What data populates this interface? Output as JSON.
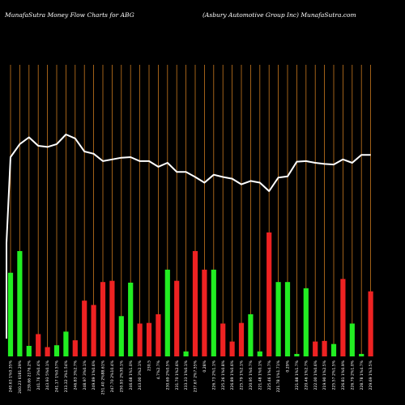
{
  "header": {
    "left": "MunafaSutra  Money Flow  Charts for ABG",
    "right": "(Asbury Automotive   Group Inc) MunafaSutra.com"
  },
  "colors": {
    "background": "#000000",
    "gridline": "#c8781e",
    "up": "#22ee22",
    "down": "#ee2222",
    "line": "#ffffff"
  },
  "chart_data": {
    "type": "bar",
    "title": "MunafaSutra  Money Flow  Charts for ABG",
    "subtitle": "(Asbury Automotive   Group Inc) MunafaSutra.com",
    "categories": [
      "240.63 1%0.35%",
      "240.23 6181.29%",
      "239.66 2176.2%",
      "241.76 3%0.4%",
      "243.93 5%0.1%",
      "241.17 1%0.57%",
      "233.32 3%1.54%",
      "246.83 3%2.7%",
      "248.97 3%0.1%",
      "249.89 1%0.6%",
      "251.40 2%88.61%",
      "247.70 2%10.4%",
      "250.93 2%30.1%",
      "246.68 1%1.0%",
      "243.00 3%2.1%",
      "230.5",
      "4.7%2.7%",
      "230.69 2%0.5%",
      "231.70 1%2.6%",
      "233.33 1%0.1%",
      "237.67 2%7.55%",
      "0.28%",
      "226.73 2%1.1%",
      "225.26 1%0.8%",
      "226.89 1%0.6%",
      "225.79 1%2.1%",
      "220.95 1%0.7%",
      "221.48 1%0.1%",
      "225.46 1%4.7%",
      "221.78 1%1.71%",
      "0.29%",
      "221.88 1%1.7%",
      "220.46 1%2.7%",
      "222.00 1%0.6%",
      "219.90 1%2.5%",
      "225.57 2%1.5%",
      "226.81 1%0.9%",
      "226.79 2%1.0%",
      "228.78 1%4.7%",
      "229.69 1%3.5%"
    ],
    "series": [
      {
        "values": [
          13.5,
          17.0,
          1.7,
          3.6,
          1.5,
          1.8,
          4.0,
          2.6,
          9.0,
          8.3,
          12.0,
          12.2,
          6.5,
          11.9,
          5.3,
          5.4,
          6.8,
          14.0,
          12.2,
          0.8,
          17.0,
          14.0,
          14.0,
          5.3,
          2.4,
          5.4,
          6.8,
          0.8,
          20.0,
          12.0,
          12.0,
          0.4,
          11.0,
          2.4,
          2.5,
          2.0,
          12.5,
          5.3,
          0.4,
          10.5
        ],
        "colors": [
          "up",
          "up",
          "up",
          "down",
          "down",
          "up",
          "up",
          "down",
          "down",
          "down",
          "down",
          "down",
          "up",
          "up",
          "down",
          "down",
          "down",
          "up",
          "down",
          "up",
          "down",
          "down",
          "up",
          "down",
          "down",
          "down",
          "up",
          "up",
          "down",
          "up",
          "up",
          "up",
          "up",
          "down",
          "down",
          "up",
          "down",
          "up",
          "up",
          "down"
        ]
      },
      {
        "values": [
          253.0,
          255.3,
          256.5,
          255.0,
          254.8,
          255.3,
          257.0,
          256.3,
          254.0,
          253.6,
          252.3,
          252.6,
          252.9,
          253.0,
          252.3,
          252.3,
          251.3,
          252.0,
          250.4,
          250.4,
          249.5,
          248.5,
          249.9,
          249.5,
          249.2,
          248.2,
          248.8,
          248.5,
          247.0,
          249.4,
          249.6,
          252.2,
          252.3,
          252.0,
          251.8,
          251.7,
          252.6,
          252.0,
          253.4,
          253.4
        ]
      }
    ],
    "grid": true,
    "grid_axis": "x"
  }
}
